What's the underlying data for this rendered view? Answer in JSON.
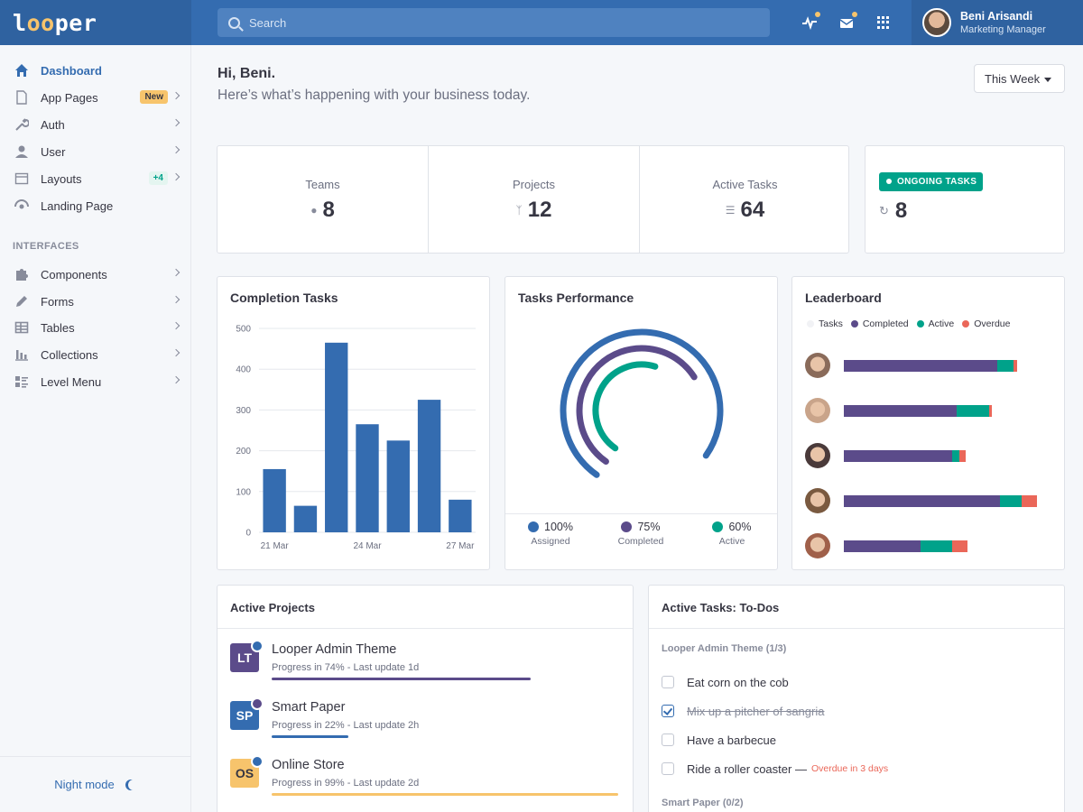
{
  "app": {
    "logo": "looper"
  },
  "search": {
    "placeholder": "Search"
  },
  "user": {
    "name": "Beni Arisandi",
    "role": "Marketing Manager"
  },
  "sidebar": {
    "items": [
      {
        "label": "Dashboard",
        "icon": "home-icon",
        "active": true
      },
      {
        "label": "App Pages",
        "icon": "file-icon",
        "badge": "New"
      },
      {
        "label": "Auth",
        "icon": "wrench-icon"
      },
      {
        "label": "User",
        "icon": "user-icon"
      },
      {
        "label": "Layouts",
        "icon": "layout-icon",
        "badge": "+4"
      },
      {
        "label": "Landing Page",
        "icon": "landing-icon"
      }
    ],
    "interfaces_header": "INTERFACES",
    "interfaces": [
      {
        "label": "Components",
        "icon": "puzzle-icon"
      },
      {
        "label": "Forms",
        "icon": "pencil-icon"
      },
      {
        "label": "Tables",
        "icon": "table-icon"
      },
      {
        "label": "Collections",
        "icon": "bar-chart-icon"
      },
      {
        "label": "Level Menu",
        "icon": "list-icon"
      }
    ],
    "night_mode": "Night mode"
  },
  "main": {
    "greeting": "Hi, Beni.",
    "subtitle": "Here’s what’s happening with your business today.",
    "period": "This Week"
  },
  "stats": {
    "teams": {
      "label": "Teams",
      "value": "8"
    },
    "projects": {
      "label": "Projects",
      "value": "12"
    },
    "active_tasks": {
      "label": "Active Tasks",
      "value": "64"
    },
    "ongoing": {
      "label": "ONGOING TASKS",
      "value": "8"
    }
  },
  "completion": {
    "title": "Completion Tasks"
  },
  "chart_data": {
    "type": "bar",
    "title": "Completion Tasks",
    "categories": [
      "21 Mar",
      "",
      "",
      "24 Mar",
      "",
      "",
      "27 Mar"
    ],
    "values": [
      155,
      65,
      465,
      265,
      225,
      325,
      80
    ],
    "ylim": [
      0,
      500
    ],
    "yticks": [
      0,
      100,
      200,
      300,
      400,
      500
    ],
    "color": "#346cb0"
  },
  "performance": {
    "title": "Tasks Performance",
    "metrics": [
      {
        "value": "100%",
        "label": "Assigned",
        "color": "#346cb0",
        "fraction": 1.0
      },
      {
        "value": "75%",
        "label": "Completed",
        "color": "#5b4b8a",
        "fraction": 0.75
      },
      {
        "value": "60%",
        "label": "Active",
        "color": "#00a28a",
        "fraction": 0.6
      }
    ]
  },
  "leaderboard": {
    "title": "Leaderboard",
    "legend": [
      {
        "label": "Tasks",
        "color": "#f1f2f5"
      },
      {
        "label": "Completed",
        "color": "#5b4b8a"
      },
      {
        "label": "Active",
        "color": "#00a28a"
      },
      {
        "label": "Overdue",
        "color": "#ea6759"
      }
    ],
    "rows": [
      {
        "completed": 170,
        "active": 18,
        "overdue": 4,
        "avatar": "#8a6b5a"
      },
      {
        "completed": 125,
        "active": 36,
        "overdue": 3,
        "avatar": "#c9a48a"
      },
      {
        "completed": 120,
        "active": 8,
        "overdue": 7,
        "avatar": "#4a3a3a"
      },
      {
        "completed": 173,
        "active": 24,
        "overdue": 17,
        "avatar": "#7a5a40"
      },
      {
        "completed": 85,
        "active": 35,
        "overdue": 17,
        "avatar": "#a0604a"
      }
    ]
  },
  "projects": {
    "title": "Active Projects",
    "items": [
      {
        "abbr": "LT",
        "name": "Looper Admin Theme",
        "meta": "Progress in 74% - Last update 1d",
        "progress": 0.74,
        "color": "#5b4b8a",
        "badge": "#346cb0"
      },
      {
        "abbr": "SP",
        "name": "Smart Paper",
        "meta": "Progress in 22% - Last update 2h",
        "progress": 0.22,
        "color": "#346cb0",
        "badge": "#5b4b8a"
      },
      {
        "abbr": "OS",
        "name": "Online Store",
        "meta": "Progress in 99% - Last update 2d",
        "progress": 0.99,
        "color": "#f7c46c",
        "badge": "#346cb0"
      }
    ]
  },
  "todos": {
    "title": "Active Tasks: To-Dos",
    "group1": "Looper Admin Theme (1/3)",
    "items": [
      {
        "label": "Eat corn on the cob",
        "done": false
      },
      {
        "label": "Mix up a pitcher of sangria",
        "done": true
      },
      {
        "label": "Have a barbecue",
        "done": false
      },
      {
        "label": "Ride a roller coaster —",
        "done": false,
        "note": "Overdue in 3 days"
      }
    ],
    "group2": "Smart Paper (0/2)"
  }
}
